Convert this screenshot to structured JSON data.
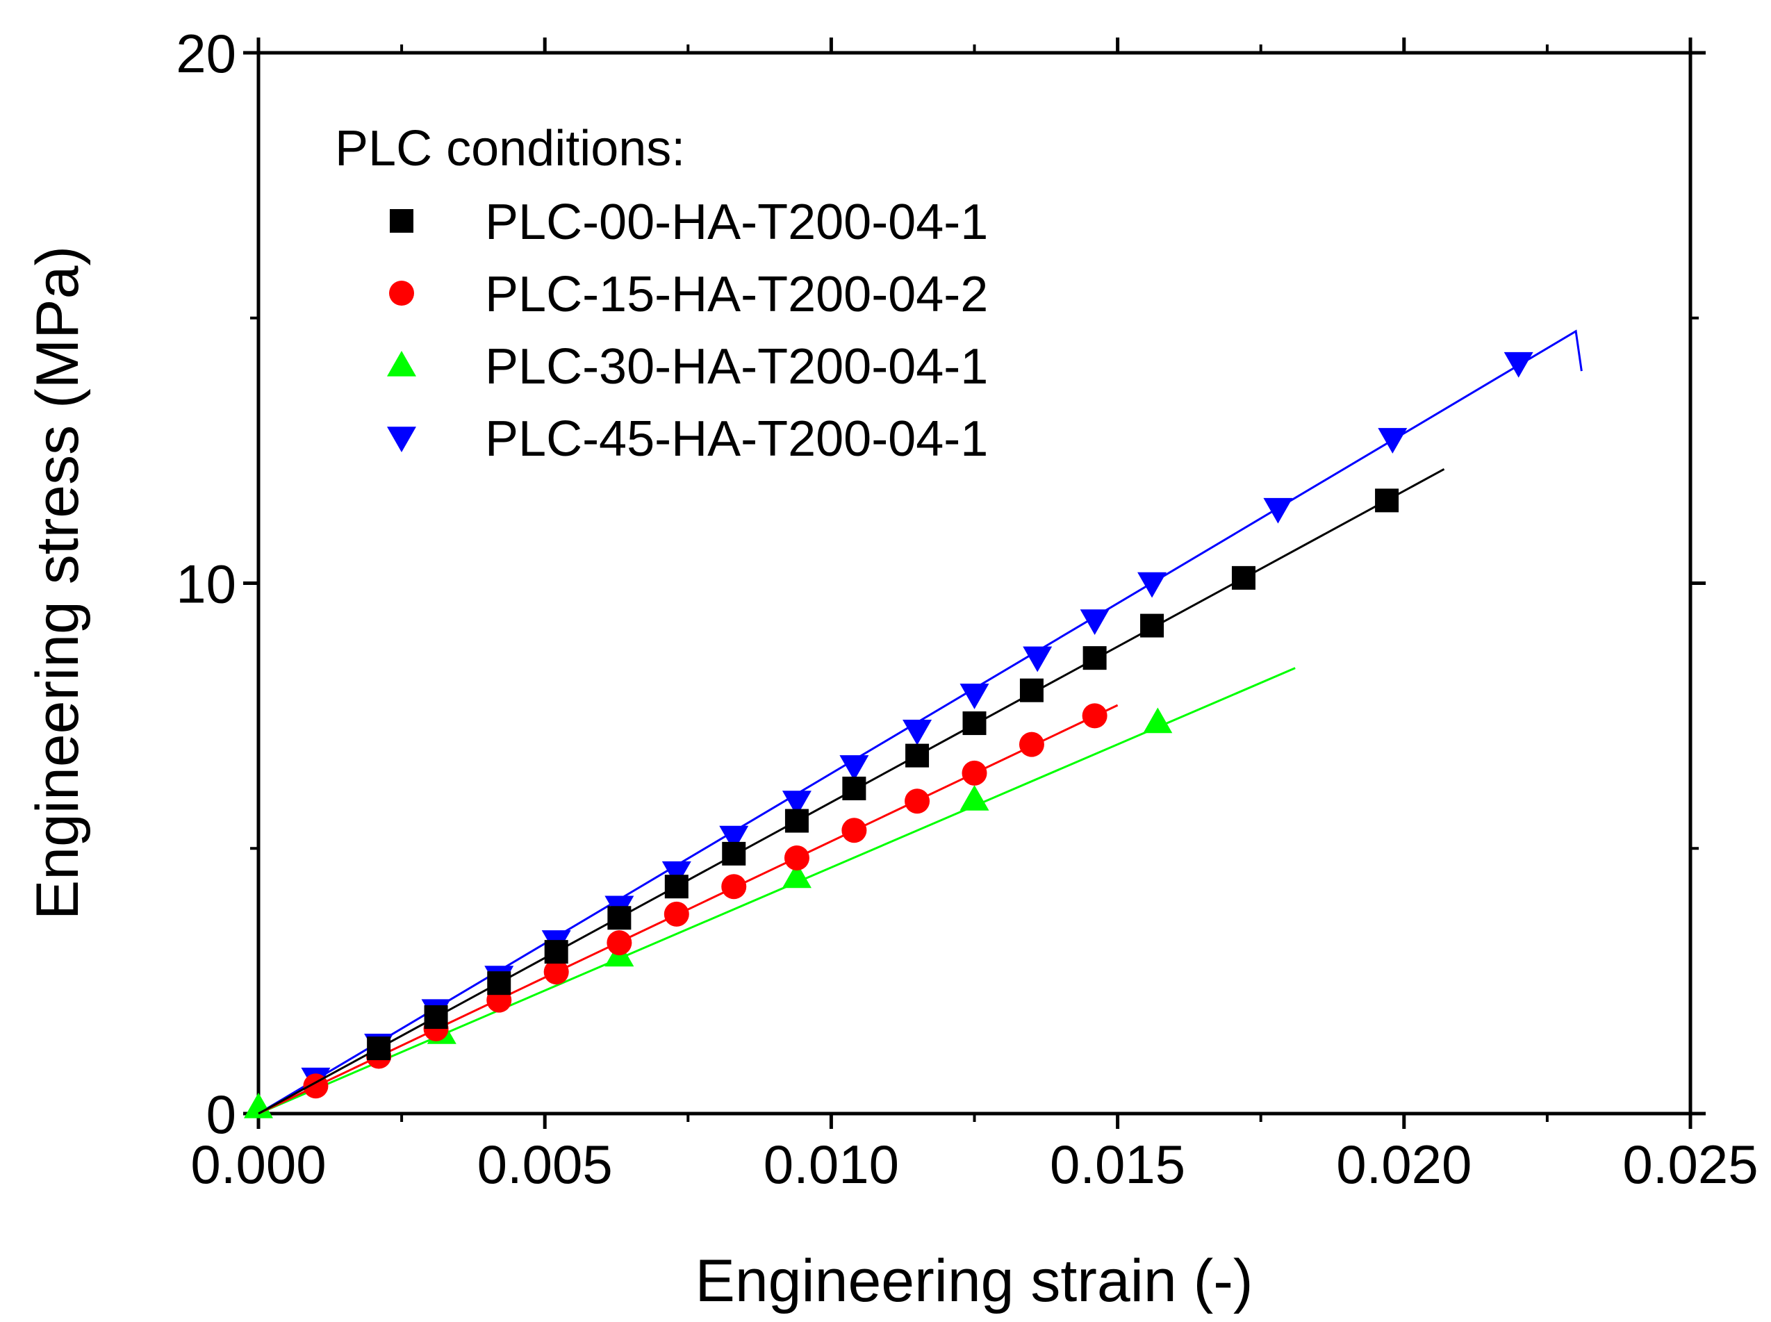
{
  "chart_data": {
    "type": "line",
    "title": "",
    "xlabel": "Engineering strain (-)",
    "ylabel": "Engineering stress (MPa)",
    "xlim": [
      0,
      0.025
    ],
    "ylim": [
      0,
      20
    ],
    "x_ticks": [
      "0.000",
      "0.005",
      "0.010",
      "0.015",
      "0.020",
      "0.025"
    ],
    "y_ticks": [
      "0",
      "10",
      "20"
    ],
    "legend_title": "PLC conditions:",
    "legend_position": "top-left",
    "series": [
      {
        "name": "PLC-00-HA-T200-04-1",
        "color": "#000000",
        "marker": "square",
        "line": [
          [
            0,
            0
          ],
          [
            0.0207,
            12.15
          ]
        ],
        "markers": [
          [
            0.0021,
            1.23
          ],
          [
            0.0031,
            1.82
          ],
          [
            0.0042,
            2.46
          ],
          [
            0.0052,
            3.05
          ],
          [
            0.0063,
            3.69
          ],
          [
            0.0073,
            4.28
          ],
          [
            0.0083,
            4.9
          ],
          [
            0.0094,
            5.52
          ],
          [
            0.0104,
            6.13
          ],
          [
            0.0115,
            6.75
          ],
          [
            0.0125,
            7.36
          ],
          [
            0.0135,
            7.98
          ],
          [
            0.0146,
            8.59
          ],
          [
            0.0156,
            9.2
          ],
          [
            0.0172,
            10.1
          ],
          [
            0.0197,
            11.56
          ]
        ]
      },
      {
        "name": "PLC-15-HA-T200-04-2",
        "color": "#ff0000",
        "marker": "circle",
        "line": [
          [
            0,
            0
          ],
          [
            0.015,
            7.7
          ]
        ],
        "markers": [
          [
            0.001,
            0.52
          ],
          [
            0.0021,
            1.08
          ],
          [
            0.0031,
            1.6
          ],
          [
            0.0042,
            2.14
          ],
          [
            0.0052,
            2.67
          ],
          [
            0.0063,
            3.22
          ],
          [
            0.0073,
            3.76
          ],
          [
            0.0083,
            4.28
          ],
          [
            0.0094,
            4.82
          ],
          [
            0.0104,
            5.34
          ],
          [
            0.0115,
            5.89
          ],
          [
            0.0125,
            6.42
          ],
          [
            0.0135,
            6.96
          ],
          [
            0.0146,
            7.5
          ]
        ]
      },
      {
        "name": "PLC-30-HA-T200-04-1",
        "color": "#00ff00",
        "marker": "triangle-up",
        "line": [
          [
            0,
            0
          ],
          [
            0.0181,
            8.4
          ]
        ],
        "markers": [
          [
            0.0,
            0.12
          ],
          [
            0.0032,
            1.52
          ],
          [
            0.0063,
            2.98
          ],
          [
            0.0094,
            4.46
          ],
          [
            0.0125,
            5.92
          ],
          [
            0.0157,
            7.38
          ]
        ]
      },
      {
        "name": "PLC-45-HA-T200-04-1",
        "color": "#0000ff",
        "marker": "triangle-down",
        "line": [
          [
            0,
            0
          ],
          [
            0.023,
            14.75
          ],
          [
            0.0231,
            14.0
          ]
        ],
        "markers": [
          [
            0.001,
            0.66
          ],
          [
            0.0021,
            1.3
          ],
          [
            0.0031,
            1.95
          ],
          [
            0.0042,
            2.58
          ],
          [
            0.0052,
            3.25
          ],
          [
            0.0063,
            3.9
          ],
          [
            0.0073,
            4.55
          ],
          [
            0.0083,
            5.22
          ],
          [
            0.0094,
            5.88
          ],
          [
            0.0104,
            6.55
          ],
          [
            0.0115,
            7.22
          ],
          [
            0.0125,
            7.9
          ],
          [
            0.0136,
            8.6
          ],
          [
            0.0146,
            9.3
          ],
          [
            0.0156,
            10.0
          ],
          [
            0.0178,
            11.4
          ],
          [
            0.0198,
            12.72
          ],
          [
            0.022,
            14.15
          ]
        ]
      }
    ]
  }
}
